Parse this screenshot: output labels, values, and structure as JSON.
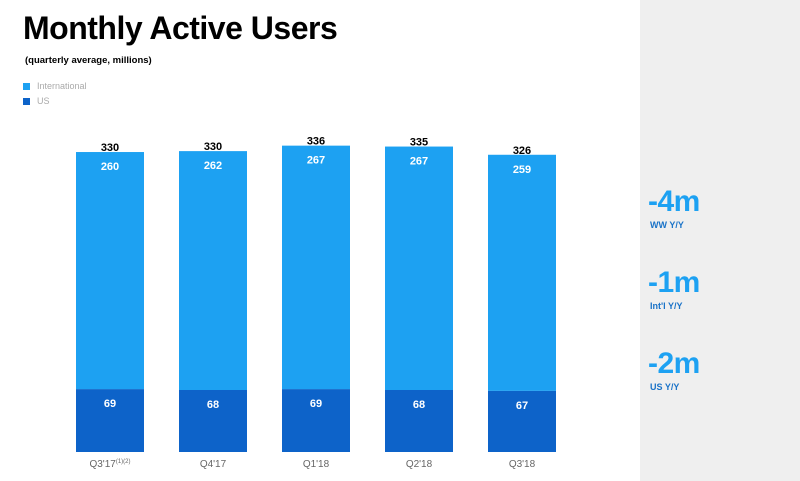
{
  "chart_data": {
    "type": "bar",
    "stacked": true,
    "title": "Monthly Active Users",
    "subtitle": "(quarterly average, millions)",
    "categories": [
      "Q3'17",
      "Q4'17",
      "Q1'18",
      "Q2'18",
      "Q3'18"
    ],
    "category_superscripts": [
      "(1)(2)",
      "",
      "",
      "",
      ""
    ],
    "series": [
      {
        "name": "US",
        "values": [
          69,
          68,
          69,
          68,
          67
        ],
        "color": "#0d63c9"
      },
      {
        "name": "International",
        "values": [
          260,
          262,
          267,
          267,
          259
        ],
        "color": "#1da1f2"
      }
    ],
    "totals": [
      330,
      330,
      336,
      335,
      326
    ],
    "ylim": [
      0,
      340
    ],
    "xlabel": "",
    "ylabel": "",
    "grid": false,
    "legend": "top-left"
  },
  "legend": {
    "international": {
      "label": "International",
      "color": "#1da1f2"
    },
    "us": {
      "label": "US",
      "color": "#0d63c9"
    }
  },
  "metrics": [
    {
      "value": "-4m",
      "label": "WW Y/Y"
    },
    {
      "value": "-1m",
      "label": "Int'l Y/Y"
    },
    {
      "value": "-2m",
      "label": "US Y/Y"
    }
  ]
}
